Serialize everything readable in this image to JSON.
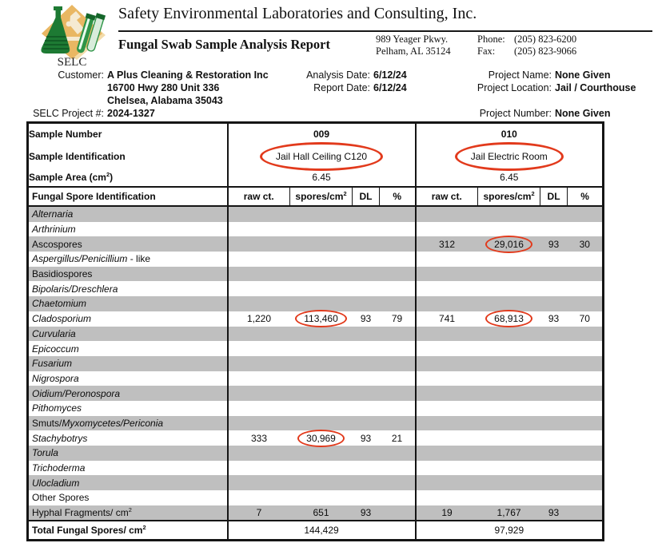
{
  "header": {
    "company": "Safety Environmental Laboratories and Consulting, Inc.",
    "report_title": "Fungal Swab Sample Analysis Report",
    "address_line1": "989 Yeager Pkwy.",
    "address_line2": "Pelham, AL 35124",
    "phone_label": "Phone:",
    "phone": "(205) 823-6200",
    "fax_label": "Fax:",
    "fax": "(205) 823-9066",
    "logo_text": "SELC"
  },
  "info": {
    "customer_label": "Customer:",
    "customer_name": "A Plus Cleaning & Restoration Inc",
    "customer_address1": "16700 Hwy 280 Unit 336",
    "customer_address2": "Chelsea, Alabama 35043",
    "analysis_date_label": "Analysis Date:",
    "analysis_date": "6/12/24",
    "report_date_label": "Report Date:",
    "report_date": "6/12/24",
    "selc_project_label": "SELC Project #:",
    "selc_project": "2024-1327",
    "project_name_label": "Project Name:",
    "project_name": "None Given",
    "project_location_label": "Project Location:",
    "project_location": "Jail / Courthouse",
    "project_number_label": "Project Number:",
    "project_number": "None Given"
  },
  "colors": {
    "accent_red": "#e23a1c",
    "row_shade": "#bfbfbf",
    "logo_tan": "#e9b763",
    "logo_green": "#1d7a33"
  },
  "table": {
    "labels": {
      "sample_number": "Sample Number",
      "sample_identification": "Sample Identification",
      "sample_area_pre": "Sample Area (cm",
      "sample_area_sup": "2",
      "sample_area_close": ")",
      "fungal_spore_identification": "Fungal Spore Identification",
      "raw_ct": "raw ct.",
      "spores_pre": "spores/cm",
      "spores_sup": "2",
      "dl": "DL",
      "pct": "%",
      "total_pre": "Total Fungal Spores/ cm",
      "total_sup": "2"
    },
    "samples": [
      {
        "number": "009",
        "identification": "Jail Hall Ceiling C120",
        "area": "6.45",
        "total": "144,429"
      },
      {
        "number": "010",
        "identification": "Jail Electric Room",
        "area": "6.45",
        "total": "97,929"
      }
    ],
    "rows": [
      {
        "parts": [
          [
            "Alternaria",
            1
          ]
        ],
        "shaded": true,
        "cells": [
          "",
          "",
          "",
          "",
          "",
          "",
          "",
          ""
        ]
      },
      {
        "parts": [
          [
            "Arthrinium",
            1
          ]
        ],
        "shaded": false,
        "cells": [
          "",
          "",
          "",
          "",
          "",
          "",
          "",
          ""
        ]
      },
      {
        "parts": [
          [
            "Ascospores",
            0
          ]
        ],
        "shaded": true,
        "cells": [
          "",
          "",
          "",
          "",
          "312",
          "29,016",
          "93",
          "30"
        ],
        "circled": [
          5
        ]
      },
      {
        "parts": [
          [
            "Aspergillus/Penicillium",
            1
          ],
          [
            " - like",
            0
          ]
        ],
        "shaded": false,
        "cells": [
          "",
          "",
          "",
          "",
          "",
          "",
          "",
          ""
        ]
      },
      {
        "parts": [
          [
            "Basidiospores",
            0
          ]
        ],
        "shaded": true,
        "cells": [
          "",
          "",
          "",
          "",
          "",
          "",
          "",
          ""
        ]
      },
      {
        "parts": [
          [
            "Bipolaris/Dreschlera",
            1
          ]
        ],
        "shaded": false,
        "cells": [
          "",
          "",
          "",
          "",
          "",
          "",
          "",
          ""
        ]
      },
      {
        "parts": [
          [
            "Chaetomium",
            1
          ]
        ],
        "shaded": true,
        "cells": [
          "",
          "",
          "",
          "",
          "",
          "",
          "",
          ""
        ]
      },
      {
        "parts": [
          [
            "Cladosporium",
            1
          ]
        ],
        "shaded": false,
        "cells": [
          "1,220",
          "113,460",
          "93",
          "79",
          "741",
          "68,913",
          "93",
          "70"
        ],
        "circled": [
          1,
          5
        ]
      },
      {
        "parts": [
          [
            "Curvularia",
            1
          ]
        ],
        "shaded": true,
        "cells": [
          "",
          "",
          "",
          "",
          "",
          "",
          "",
          ""
        ]
      },
      {
        "parts": [
          [
            "Epicoccum",
            1
          ]
        ],
        "shaded": false,
        "cells": [
          "",
          "",
          "",
          "",
          "",
          "",
          "",
          ""
        ]
      },
      {
        "parts": [
          [
            "Fusarium",
            1
          ]
        ],
        "shaded": true,
        "cells": [
          "",
          "",
          "",
          "",
          "",
          "",
          "",
          ""
        ]
      },
      {
        "parts": [
          [
            "Nigrospora",
            1
          ]
        ],
        "shaded": false,
        "cells": [
          "",
          "",
          "",
          "",
          "",
          "",
          "",
          ""
        ]
      },
      {
        "parts": [
          [
            "Oidium/Peronospora",
            1
          ]
        ],
        "shaded": true,
        "cells": [
          "",
          "",
          "",
          "",
          "",
          "",
          "",
          ""
        ]
      },
      {
        "parts": [
          [
            "Pithomyces",
            1
          ]
        ],
        "shaded": false,
        "cells": [
          "",
          "",
          "",
          "",
          "",
          "",
          "",
          ""
        ]
      },
      {
        "parts": [
          [
            "Smuts/",
            0
          ],
          [
            "Myxomycetes/Periconia",
            1
          ]
        ],
        "shaded": true,
        "cells": [
          "",
          "",
          "",
          "",
          "",
          "",
          "",
          ""
        ]
      },
      {
        "parts": [
          [
            "Stachybotrys",
            1
          ]
        ],
        "shaded": false,
        "cells": [
          "333",
          "30,969",
          "93",
          "21",
          "",
          "",
          "",
          ""
        ],
        "circled": [
          1
        ]
      },
      {
        "parts": [
          [
            "Torula",
            1
          ]
        ],
        "shaded": true,
        "cells": [
          "",
          "",
          "",
          "",
          "",
          "",
          "",
          ""
        ]
      },
      {
        "parts": [
          [
            "Trichoderma",
            1
          ]
        ],
        "shaded": false,
        "cells": [
          "",
          "",
          "",
          "",
          "",
          "",
          "",
          ""
        ]
      },
      {
        "parts": [
          [
            "Ulocladium",
            1
          ]
        ],
        "shaded": true,
        "cells": [
          "",
          "",
          "",
          "",
          "",
          "",
          "",
          ""
        ]
      },
      {
        "parts": [
          [
            "Other Spores",
            0
          ]
        ],
        "shaded": false,
        "cells": [
          "",
          "",
          "",
          "",
          "",
          "",
          "",
          ""
        ]
      },
      {
        "parts": [
          [
            "Hyphal Fragments/ cm",
            0
          ],
          [
            "2",
            2
          ]
        ],
        "shaded": true,
        "cells": [
          "7",
          "651",
          "93",
          "",
          "19",
          "1,767",
          "93",
          ""
        ]
      }
    ]
  }
}
